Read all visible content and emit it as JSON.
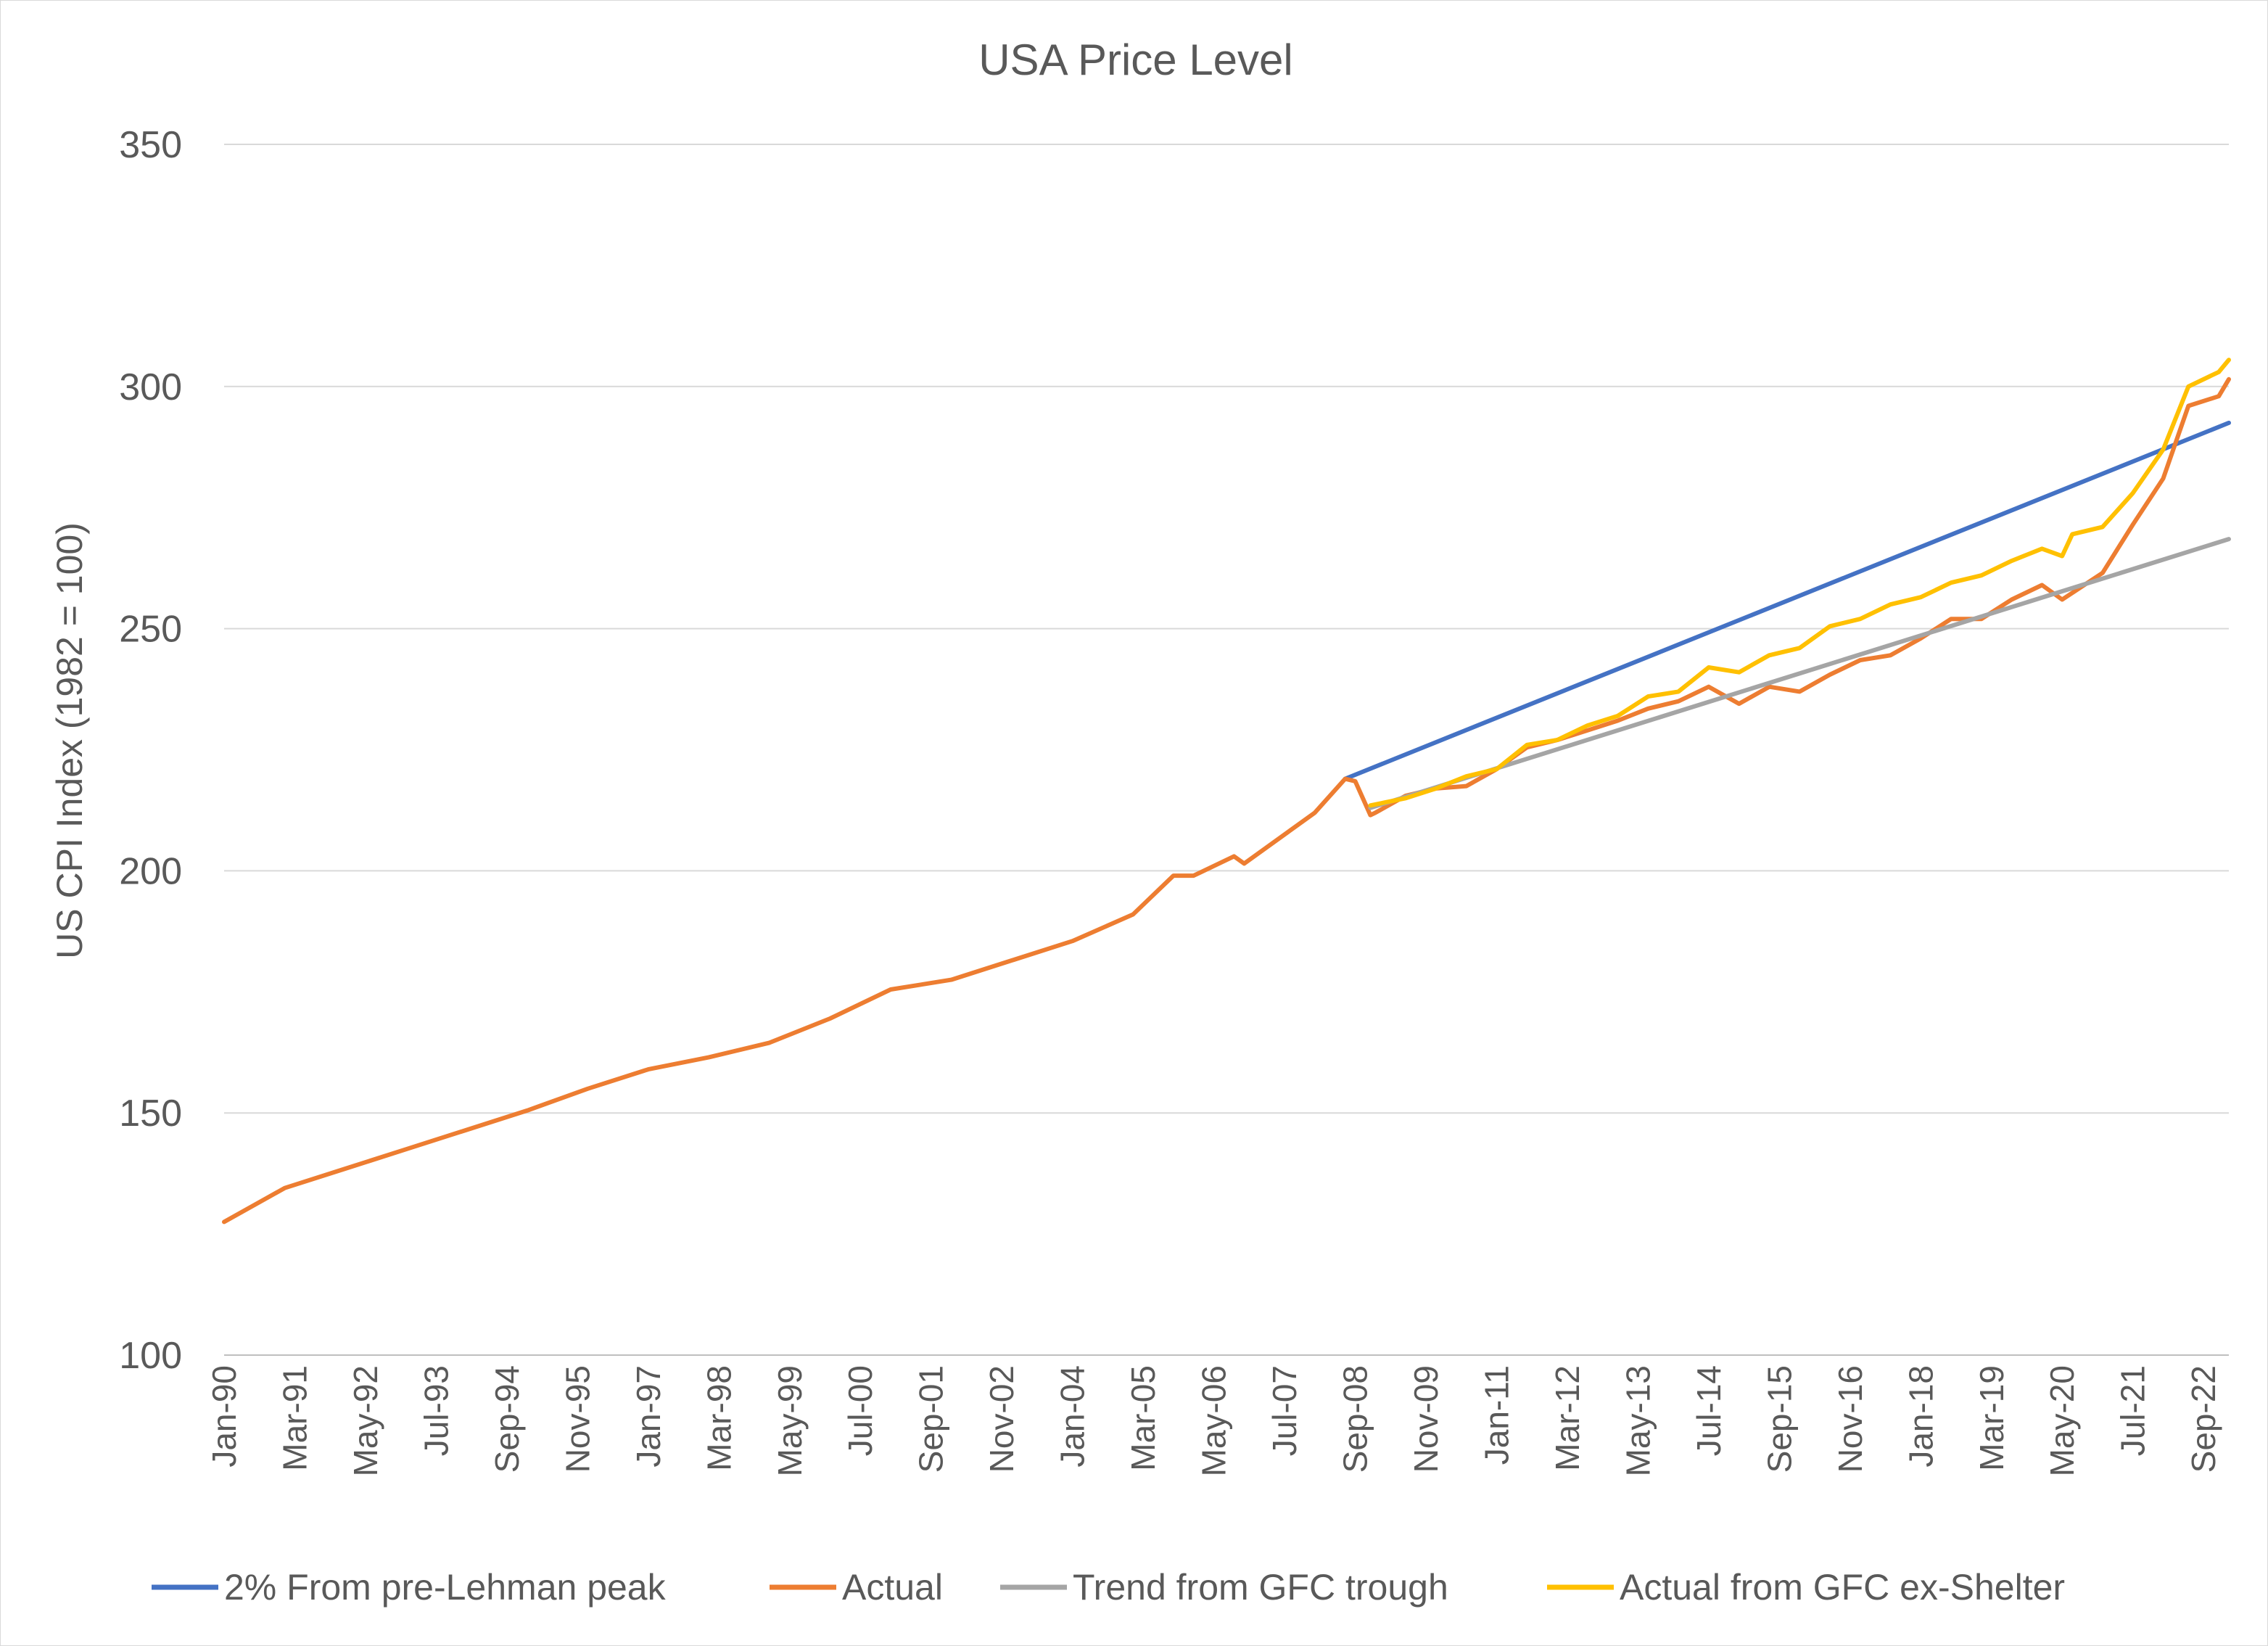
{
  "chart_data": {
    "type": "line",
    "title": "USA Price Level",
    "xlabel": "",
    "ylabel": "US CPI Index (1982 = 100)",
    "ylim": [
      100,
      350
    ],
    "yticks": [
      100,
      150,
      200,
      250,
      300,
      350
    ],
    "xlim": [
      "Jan-90",
      "Feb-23"
    ],
    "xtick_labels": [
      "Jan-90",
      "Mar-91",
      "May-92",
      "Jul-93",
      "Sep-94",
      "Nov-95",
      "Jan-97",
      "Mar-98",
      "May-99",
      "Jul-00",
      "Sep-01",
      "Nov-02",
      "Jan-04",
      "Mar-05",
      "May-06",
      "Jul-07",
      "Sep-08",
      "Nov-09",
      "Jan-11",
      "Mar-12",
      "May-13",
      "Jul-14",
      "Sep-15",
      "Nov-16",
      "Jan-18",
      "Mar-19",
      "May-20",
      "Jul-21",
      "Sep-22"
    ],
    "grid": true,
    "legend_position": "bottom",
    "series": [
      {
        "name": "2% From pre-Lehman peak",
        "color": "#4472C4",
        "points": [
          [
            "Jul-08",
            219.0
          ],
          [
            "Feb-23",
            292.5
          ]
        ]
      },
      {
        "name": "Actual",
        "color": "#ED7D31",
        "points": [
          [
            "Jan-90",
            127.5
          ],
          [
            "Jan-91",
            134.5
          ],
          [
            "Jan-92",
            138.5
          ],
          [
            "Jan-93",
            142.5
          ],
          [
            "Jan-94",
            146.5
          ],
          [
            "Jan-95",
            150.5
          ],
          [
            "Jan-96",
            155.0
          ],
          [
            "Jan-97",
            159.0
          ],
          [
            "Jan-98",
            161.5
          ],
          [
            "Jan-99",
            164.5
          ],
          [
            "Jan-00",
            169.5
          ],
          [
            "Jan-01",
            175.5
          ],
          [
            "Jan-02",
            177.5
          ],
          [
            "Jan-03",
            181.5
          ],
          [
            "Jan-04",
            185.5
          ],
          [
            "Jan-05",
            191.0
          ],
          [
            "Sep-05",
            199.0
          ],
          [
            "Jan-06",
            199.0
          ],
          [
            "Sep-06",
            203.0
          ],
          [
            "Nov-06",
            201.5
          ],
          [
            "Jan-07",
            203.0
          ],
          [
            "Jan-08",
            212.0
          ],
          [
            "Jul-08",
            219.0
          ],
          [
            "Sep-08",
            218.5
          ],
          [
            "Dec-08",
            211.5
          ],
          [
            "Jan-09",
            212.0
          ],
          [
            "Jul-09",
            215.5
          ],
          [
            "Jan-10",
            217.0
          ],
          [
            "Jul-10",
            217.5
          ],
          [
            "Jan-11",
            221.0
          ],
          [
            "Jul-11",
            225.5
          ],
          [
            "Jan-12",
            227.0
          ],
          [
            "Jul-12",
            229.0
          ],
          [
            "Jan-13",
            231.0
          ],
          [
            "Jul-13",
            233.5
          ],
          [
            "Jan-14",
            235.0
          ],
          [
            "Jul-14",
            238.0
          ],
          [
            "Jan-15",
            234.5
          ],
          [
            "Jul-15",
            238.0
          ],
          [
            "Jan-16",
            237.0
          ],
          [
            "Jul-16",
            240.5
          ],
          [
            "Jan-17",
            243.5
          ],
          [
            "Jul-17",
            244.5
          ],
          [
            "Jan-18",
            248.0
          ],
          [
            "Jul-18",
            252.0
          ],
          [
            "Jan-19",
            252.0
          ],
          [
            "Jul-19",
            256.0
          ],
          [
            "Jan-20",
            259.0
          ],
          [
            "May-20",
            256.0
          ],
          [
            "Jan-21",
            261.5
          ],
          [
            "Jul-21",
            271.5
          ],
          [
            "Jan-22",
            281.0
          ],
          [
            "Jun-22",
            296.0
          ],
          [
            "Dec-22",
            298.0
          ],
          [
            "Feb-23",
            301.5
          ]
        ]
      },
      {
        "name": "Trend from GFC trough",
        "color": "#A5A5A5",
        "points": [
          [
            "Dec-08",
            213.0
          ],
          [
            "Feb-23",
            268.5
          ]
        ]
      },
      {
        "name": "Actual from GFC ex-Shelter",
        "color": "#FFC000",
        "points": [
          [
            "Dec-08",
            213.5
          ],
          [
            "Jul-09",
            215.0
          ],
          [
            "Jan-10",
            217.0
          ],
          [
            "Jul-10",
            219.5
          ],
          [
            "Jan-11",
            221.0
          ],
          [
            "Jul-11",
            226.0
          ],
          [
            "Jan-12",
            227.0
          ],
          [
            "Jul-12",
            230.0
          ],
          [
            "Jan-13",
            232.0
          ],
          [
            "Jul-13",
            236.0
          ],
          [
            "Jan-14",
            237.0
          ],
          [
            "Jul-14",
            242.0
          ],
          [
            "Jan-15",
            241.0
          ],
          [
            "Jul-15",
            244.5
          ],
          [
            "Jan-16",
            246.0
          ],
          [
            "Jul-16",
            250.5
          ],
          [
            "Jan-17",
            252.0
          ],
          [
            "Jul-17",
            255.0
          ],
          [
            "Jan-18",
            256.5
          ],
          [
            "Jul-18",
            259.5
          ],
          [
            "Jan-19",
            261.0
          ],
          [
            "Jul-19",
            264.0
          ],
          [
            "Jan-20",
            266.5
          ],
          [
            "May-20",
            265.0
          ],
          [
            "Jul-20",
            269.5
          ],
          [
            "Jan-21",
            271.0
          ],
          [
            "Jul-21",
            278.0
          ],
          [
            "Jan-22",
            287.0
          ],
          [
            "Jun-22",
            300.0
          ],
          [
            "Dec-22",
            303.0
          ],
          [
            "Feb-23",
            305.5
          ]
        ]
      }
    ]
  }
}
